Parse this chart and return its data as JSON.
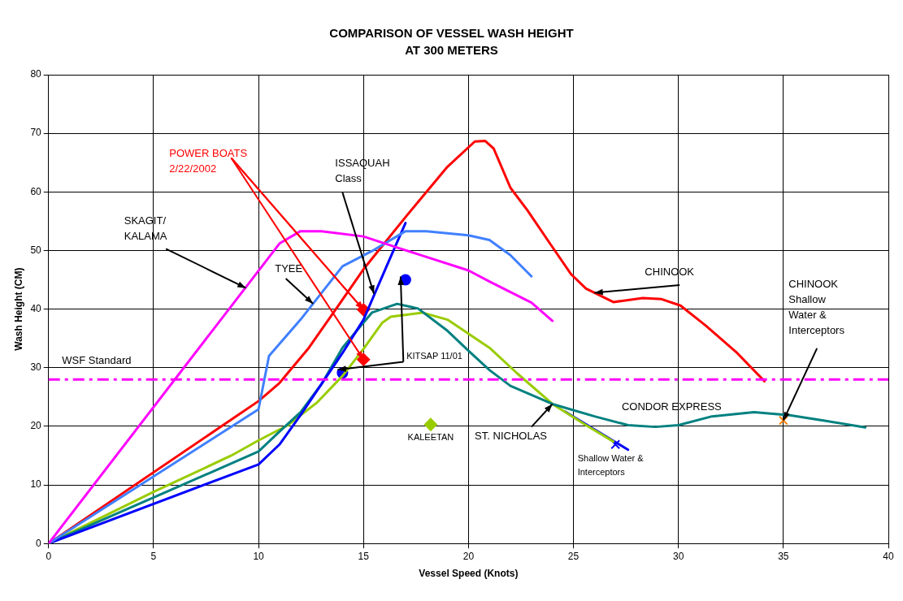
{
  "chart_data": {
    "type": "line",
    "title": "COMPARISON OF VESSEL WASH HEIGHT AT 300 METERS",
    "xlabel": "Vessel Speed (Knots)",
    "ylabel": "Wash Height (CM)",
    "xlim": [
      0,
      40
    ],
    "xticks": [
      0,
      5,
      10,
      15,
      20,
      25,
      30,
      35,
      40
    ],
    "ylim": [
      0,
      80
    ],
    "yticks": [
      0,
      10,
      20,
      30,
      40,
      50,
      60,
      70,
      80
    ],
    "grid": true,
    "legend": false,
    "marker": "none",
    "line_style": "solid",
    "series": [
      {
        "type": "line",
        "color": "#ff00ff",
        "x": [
          0,
          11,
          12,
          13,
          15,
          16.7,
          20,
          21,
          23,
          24
        ],
        "values": [
          0,
          51.2,
          53.3,
          53.3,
          52.4,
          50.4,
          46.6,
          44.7,
          41.1,
          38
        ]
      },
      {
        "type": "line",
        "color": "#4080ff",
        "x": [
          0,
          10,
          10.5,
          12,
          14,
          15.4,
          17,
          18,
          20,
          21,
          22,
          23
        ],
        "values": [
          0,
          22.9,
          32,
          38.2,
          47.3,
          49.9,
          53.3,
          53.3,
          52.6,
          51.8,
          49.2,
          45.6
        ]
      },
      {
        "type": "line",
        "color": "#ff0000",
        "x": [
          0,
          10,
          11,
          12.4,
          13.8,
          15,
          17,
          19,
          20.3,
          20.8,
          21.2,
          22,
          22.8,
          23.9,
          24.9,
          25.6,
          26.9,
          28.3,
          29.2,
          30.1,
          31.3,
          32.8,
          34.1
        ],
        "values": [
          0,
          24.3,
          27.4,
          33.4,
          40.6,
          46.8,
          55.7,
          64.3,
          68.6,
          68.7,
          67.4,
          60.7,
          56.9,
          51.1,
          45.9,
          43.5,
          41.2,
          41.9,
          41.7,
          40.6,
          37.2,
          32.5,
          27.7
        ]
      },
      {
        "type": "line",
        "color": "#0000ff",
        "x": [
          0,
          10,
          11,
          12,
          13,
          14,
          15,
          16.1,
          17
        ],
        "values": [
          0,
          13.5,
          16.9,
          21.9,
          27.2,
          32.5,
          38.2,
          47.3,
          54.7
        ]
      },
      {
        "type": "line",
        "color": "#008080",
        "x": [
          0,
          10,
          11,
          12,
          13,
          14,
          15,
          15.4,
          16.6,
          17.6,
          19,
          20,
          21,
          22,
          24,
          26,
          27.6,
          28.9,
          30,
          31.6,
          33.6,
          35.3,
          36.9,
          38.9
        ],
        "values": [
          0,
          15.7,
          19.1,
          22.4,
          27.2,
          33.4,
          37.7,
          39.4,
          40.9,
          40.1,
          36.3,
          32.9,
          29.6,
          26.9,
          23.8,
          21.7,
          20.2,
          19.9,
          20.2,
          21.7,
          22.4,
          21.9,
          21,
          19.8
        ]
      },
      {
        "type": "line",
        "color": "#99cc00",
        "x": [
          0,
          5,
          8.7,
          10,
          11.4,
          12.8,
          14,
          15,
          15.9,
          16.3,
          17.8,
          19,
          21,
          22.3,
          24,
          25.6,
          26.9
        ],
        "values": [
          0,
          8.8,
          15,
          17.6,
          20.2,
          24.1,
          28.6,
          33.2,
          37.7,
          38.7,
          39.4,
          38.2,
          33.4,
          29.1,
          23.8,
          20.2,
          17.4
        ]
      },
      {
        "type": "line",
        "color": "#0000ff",
        "x": [
          24.6,
          27.6
        ],
        "values": [
          22.5,
          16
        ]
      },
      {
        "type": "scatter",
        "marker": "diamond",
        "color": "#ff0000",
        "x": [
          15,
          15
        ],
        "values": [
          39.9,
          31.4
        ]
      },
      {
        "name": "KITSAP 11/01",
        "type": "scatter",
        "marker": "circle",
        "color": "#0000ff",
        "x": [
          14,
          17
        ],
        "values": [
          29.1,
          45
        ]
      },
      {
        "name": "KALEETAN",
        "type": "scatter",
        "marker": "diamond",
        "color": "#99cc00",
        "x": [
          18.2
        ],
        "values": [
          20.3
        ]
      },
      {
        "name": "Shallow Water & Interceptors",
        "type": "scatter",
        "marker": "cross",
        "color": "#0000ff",
        "x": [
          27
        ],
        "values": [
          16.9
        ]
      },
      {
        "type": "scatter",
        "marker": "cross",
        "color": "#ff8000",
        "x": [
          35
        ],
        "values": [
          21
        ]
      }
    ],
    "ref_lines": [
      {
        "axis": "y",
        "value": 28,
        "label": "WSF Standard",
        "color": "#ff00ff",
        "line_style": "dashed"
      }
    ],
    "annotations": [
      {
        "text": "SKAGIT/ KALAMA",
        "x": 9.4,
        "y": 43.6
      },
      {
        "text": "TYEE",
        "x": 12.6,
        "y": 40.9
      },
      {
        "text": "CHINOOK",
        "x": 26,
        "y": 42.8
      },
      {
        "text": "ISSAQUAH Class",
        "x": 15.5,
        "y": 42.6
      },
      {
        "text": "POWER BOATS 2/22/2002",
        "x": 15,
        "y": 39.9
      },
      {
        "text": "CHINOOK Shallow Water & Interceptors",
        "x": 35,
        "y": 21
      },
      {
        "text": "ST. NICHOLAS",
        "x": 24,
        "y": 23.8
      },
      "CONDOR EXPRESS"
    ]
  }
}
